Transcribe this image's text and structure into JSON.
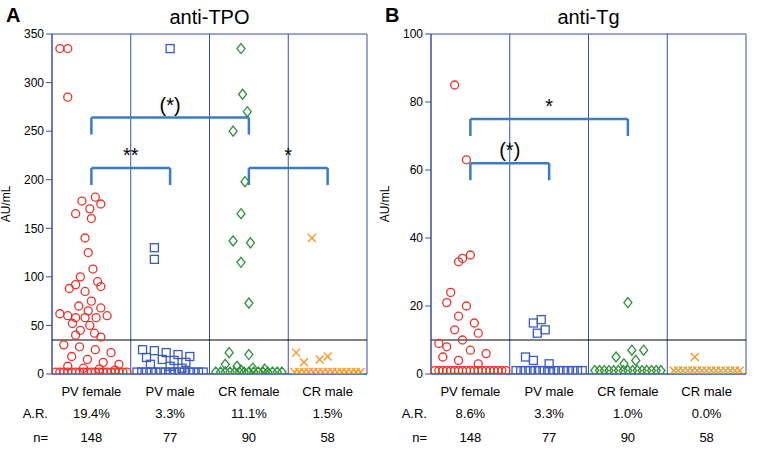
{
  "chart_data": [
    {
      "type": "scatter",
      "panel": "A",
      "title": "anti-TPO",
      "y_label": "AU/mL",
      "xlim": [
        0,
        4
      ],
      "xticks": [
        {
          "value": 0.5,
          "label": "PV female"
        },
        {
          "value": 1.5,
          "label": "PV male"
        },
        {
          "value": 2.5,
          "label": "CR female"
        },
        {
          "value": 3.5,
          "label": "CR male"
        }
      ],
      "ylim": [
        0,
        350
      ],
      "yticks": [
        0,
        50,
        100,
        150,
        200,
        250,
        300,
        350
      ],
      "cutoff": 35,
      "series": [
        {
          "color": "#e8332a",
          "marker": "circle",
          "x": [
            0.1,
            0.2,
            0.2,
            0.55,
            0.38,
            0.62,
            0.48,
            0.3,
            0.5,
            0.42,
            0.46,
            0.52,
            0.36,
            0.3,
            0.58,
            0.62,
            0.22,
            0.42,
            0.5,
            0.34,
            0.62,
            0.46,
            0.1,
            0.2,
            0.3,
            0.42,
            0.56,
            0.7,
            0.26,
            0.48,
            0.36,
            0.54,
            0.3,
            0.62,
            0.15,
            0.35,
            0.55,
            0.75,
            0.25,
            0.45,
            0.65,
            0.85,
            0.2,
            0.4,
            0.6,
            0.8,
            0.05,
            0.1,
            0.15,
            0.2,
            0.25,
            0.3,
            0.35,
            0.4,
            0.45,
            0.5,
            0.55,
            0.6,
            0.65,
            0.7,
            0.75,
            0.8,
            0.85,
            0.9,
            0.95
          ],
          "values": [
            335,
            335,
            285,
            182,
            178,
            175,
            170,
            165,
            160,
            140,
            125,
            108,
            100,
            92,
            95,
            90,
            88,
            85,
            75,
            70,
            68,
            65,
            62,
            60,
            58,
            58,
            58,
            60,
            52,
            50,
            45,
            42,
            40,
            38,
            30,
            28,
            25,
            22,
            18,
            15,
            12,
            10,
            8,
            6,
            5,
            4,
            2,
            2,
            2,
            2,
            2,
            2,
            2,
            2,
            2,
            2,
            2,
            2,
            2,
            2,
            2,
            2,
            2,
            2,
            2
          ]
        },
        {
          "color": "#3a5bbf",
          "marker": "square",
          "x": [
            1.5,
            1.3,
            1.3,
            1.15,
            1.3,
            1.45,
            1.6,
            1.75,
            1.2,
            1.4,
            1.55,
            1.7,
            1.25,
            1.5,
            1.65,
            1.08,
            1.14,
            1.2,
            1.26,
            1.32,
            1.38,
            1.44,
            1.5,
            1.56,
            1.62,
            1.68,
            1.74,
            1.8,
            1.86,
            1.92
          ],
          "values": [
            335,
            130,
            118,
            25,
            24,
            22,
            20,
            18,
            17,
            15,
            14,
            12,
            10,
            8,
            6,
            2,
            2,
            2,
            2,
            2,
            2,
            2,
            2,
            2,
            2,
            2,
            2,
            2,
            2,
            2
          ]
        },
        {
          "color": "#2f8f3a",
          "marker": "diamond",
          "x": [
            2.4,
            2.42,
            2.48,
            2.3,
            2.45,
            2.4,
            2.3,
            2.52,
            2.4,
            2.5,
            2.25,
            2.5,
            2.2,
            2.35,
            2.55,
            2.7,
            2.4,
            2.08,
            2.14,
            2.2,
            2.26,
            2.32,
            2.38,
            2.44,
            2.5,
            2.56,
            2.62,
            2.68,
            2.74,
            2.8,
            2.86,
            2.92
          ],
          "values": [
            335,
            288,
            270,
            250,
            198,
            165,
            137,
            135,
            115,
            73,
            22,
            20,
            10,
            8,
            6,
            5,
            4,
            2,
            2,
            2,
            2,
            2,
            2,
            2,
            2,
            2,
            2,
            2,
            2,
            2,
            2,
            2
          ]
        },
        {
          "color": "#f59a23",
          "marker": "cross",
          "x": [
            3.3,
            3.1,
            3.2,
            3.4,
            3.5,
            3.08,
            3.14,
            3.2,
            3.26,
            3.32,
            3.38,
            3.44,
            3.5,
            3.56,
            3.62,
            3.68,
            3.74,
            3.8,
            3.86,
            3.92
          ],
          "values": [
            140,
            22,
            12,
            15,
            18,
            2,
            2,
            2,
            2,
            2,
            2,
            2,
            2,
            2,
            2,
            2,
            2,
            2,
            2,
            2
          ]
        }
      ],
      "annotations": [
        {
          "from": "PV female",
          "to": "CR female",
          "y": 264,
          "label": "(*)"
        },
        {
          "from": "PV female",
          "to": "PV male",
          "y": 212,
          "label": "**"
        },
        {
          "from": "CR female",
          "to": "CR male",
          "y": 212,
          "label": "*"
        }
      ],
      "table": [
        {
          "label": "A.R.",
          "values": [
            "19.4%",
            "3.3%",
            "11.1%",
            "1.5%"
          ]
        },
        {
          "label": "n=",
          "values": [
            148,
            77,
            90,
            58
          ]
        }
      ]
    },
    {
      "type": "scatter",
      "panel": "B",
      "title": "anti-Tg",
      "y_label": "AU/mL",
      "xlim": [
        0,
        4
      ],
      "xticks": [
        {
          "value": 0.5,
          "label": "PV female"
        },
        {
          "value": 1.5,
          "label": "PV male"
        },
        {
          "value": 2.5,
          "label": "CR female"
        },
        {
          "value": 3.5,
          "label": "CR male"
        }
      ],
      "ylim": [
        0,
        100
      ],
      "yticks": [
        0,
        20,
        40,
        60,
        80,
        100
      ],
      "cutoff": 10,
      "series": [
        {
          "color": "#e8332a",
          "marker": "circle",
          "x": [
            0.3,
            0.45,
            0.5,
            0.4,
            0.35,
            0.25,
            0.2,
            0.45,
            0.35,
            0.55,
            0.3,
            0.6,
            0.4,
            0.1,
            0.2,
            0.5,
            0.7,
            0.15,
            0.35,
            0.6,
            0.05,
            0.1,
            0.15,
            0.2,
            0.25,
            0.3,
            0.35,
            0.4,
            0.45,
            0.5,
            0.55,
            0.6,
            0.65,
            0.7,
            0.75,
            0.8,
            0.85,
            0.9,
            0.95
          ],
          "values": [
            85,
            63,
            35,
            34,
            33,
            24,
            21,
            20,
            17,
            15,
            13,
            12,
            10,
            9,
            8,
            7,
            6,
            5,
            4,
            3,
            1,
            1,
            1,
            1,
            1,
            1,
            1,
            1,
            1,
            1,
            1,
            1,
            1,
            1,
            1,
            1,
            1,
            1,
            1
          ]
        },
        {
          "color": "#3a5bbf",
          "marker": "square",
          "x": [
            1.4,
            1.3,
            1.45,
            1.35,
            1.2,
            1.3,
            1.5,
            1.08,
            1.14,
            1.2,
            1.26,
            1.32,
            1.38,
            1.44,
            1.5,
            1.56,
            1.62,
            1.68,
            1.74,
            1.8,
            1.86,
            1.92
          ],
          "values": [
            16,
            15,
            13,
            12,
            5,
            4,
            3,
            1,
            1,
            1,
            1,
            1,
            1,
            1,
            1,
            1,
            1,
            1,
            1,
            1,
            1,
            1
          ]
        },
        {
          "color": "#2f8f3a",
          "marker": "diamond",
          "x": [
            2.5,
            2.55,
            2.7,
            2.35,
            2.6,
            2.45,
            2.08,
            2.14,
            2.2,
            2.26,
            2.32,
            2.38,
            2.44,
            2.5,
            2.56,
            2.62,
            2.68,
            2.74,
            2.8,
            2.86,
            2.92
          ],
          "values": [
            21,
            7,
            7,
            5,
            4,
            3,
            1,
            1,
            1,
            1,
            1,
            1,
            1,
            1,
            1,
            1,
            1,
            1,
            1,
            1,
            1
          ]
        },
        {
          "color": "#f59a23",
          "marker": "cross",
          "x": [
            3.35,
            3.08,
            3.14,
            3.2,
            3.26,
            3.32,
            3.38,
            3.44,
            3.5,
            3.56,
            3.62,
            3.68,
            3.74,
            3.8,
            3.86,
            3.92
          ],
          "values": [
            5,
            1,
            1,
            1,
            1,
            1,
            1,
            1,
            1,
            1,
            1,
            1,
            1,
            1,
            1,
            1
          ]
        }
      ],
      "annotations": [
        {
          "from": "PV female",
          "to": "CR female",
          "y": 75,
          "label": "*"
        },
        {
          "from": "PV female",
          "to": "PV male",
          "y": 62,
          "label": "(*)"
        }
      ],
      "table": [
        {
          "label": "A.R.",
          "values": [
            "8.6%",
            "3.3%",
            "1.0%",
            "0.0%"
          ]
        },
        {
          "label": "n=",
          "values": [
            148,
            77,
            90,
            58
          ]
        }
      ]
    }
  ]
}
